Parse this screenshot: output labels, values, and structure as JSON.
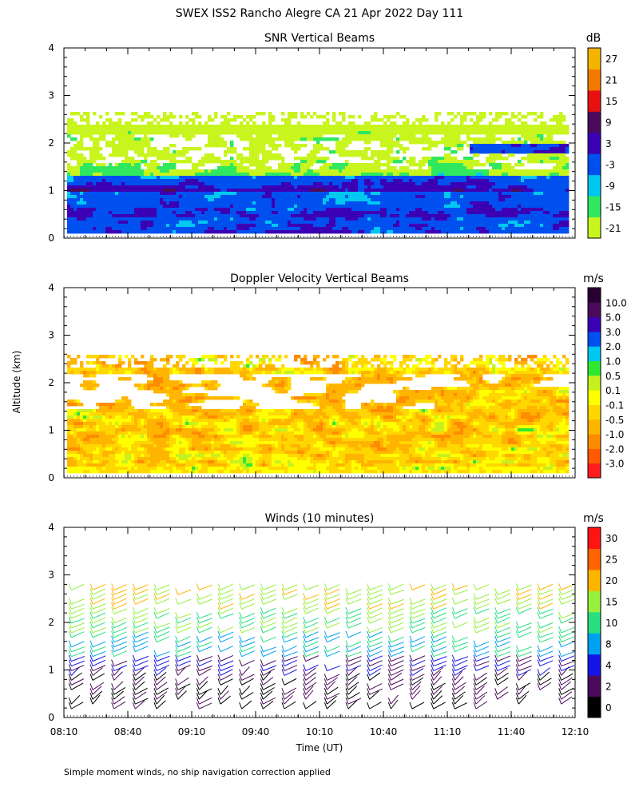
{
  "figure": {
    "title": "SWEX ISS2 Rancho Alegre CA  21 Apr 2022 Day 111",
    "y_label": "Altitude (km)",
    "x_label": "Time (UT)",
    "footnote": "Simple moment winds, no ship navigation correction applied"
  },
  "chart_data": [
    {
      "type": "heatmap",
      "title": "SNR Vertical Beams",
      "ylim": [
        0,
        4
      ],
      "y_ticks": [
        "0",
        "1",
        "2",
        "3",
        "4"
      ],
      "xlim": [
        "08:10",
        "12:10"
      ],
      "colorbar_unit": "dB",
      "colorbar_labels": [
        "-21",
        "-15",
        "-9",
        "-3",
        "3",
        "9",
        "15",
        "21",
        "27"
      ],
      "colorbar_colors": [
        "#c8f51e",
        "#30e860",
        "#00c8f0",
        "#0050f0",
        "#3c00b4",
        "#4b0a5a",
        "#e81010",
        "#f57800",
        "#f5b400"
      ],
      "data_altitude_range_km": [
        0.15,
        2.7
      ]
    },
    {
      "type": "heatmap",
      "title": "Doppler Velocity Vertical Beams",
      "ylim": [
        0,
        4
      ],
      "y_ticks": [
        "0",
        "1",
        "2",
        "3",
        "4"
      ],
      "xlim": [
        "08:10",
        "12:10"
      ],
      "colorbar_unit": "m/s",
      "colorbar_labels": [
        "-3.0",
        "-2.0",
        "-1.0",
        "-0.5",
        "-0.1",
        "0.1",
        "0.5",
        "1.0",
        "2.0",
        "3.0",
        "5.0",
        "10.0"
      ],
      "colorbar_colors": [
        "#ff1e1e",
        "#ff5a00",
        "#ff8c00",
        "#ffb400",
        "#ffd700",
        "#ffff00",
        "#c8f01e",
        "#30e830",
        "#00c8f0",
        "#0050f0",
        "#3c00b4",
        "#4b0a5a",
        "#2a0033"
      ],
      "data_altitude_range_km": [
        0.15,
        2.6
      ]
    },
    {
      "type": "scatter",
      "title": "Winds (10 minutes)",
      "ylim": [
        0,
        4
      ],
      "y_ticks": [
        "0",
        "1",
        "2",
        "3",
        "4"
      ],
      "xlim": [
        "08:10",
        "12:10"
      ],
      "x_ticks": [
        "08:10",
        "08:40",
        "09:10",
        "09:40",
        "10:10",
        "10:40",
        "11:10",
        "11:40",
        "12:10"
      ],
      "colorbar_unit": "m/s",
      "colorbar_labels": [
        "0",
        "2",
        "4",
        "8",
        "10",
        "15",
        "20",
        "25",
        "30"
      ],
      "colorbar_colors": [
        "#000000",
        "#4b0a5a",
        "#1414e6",
        "#00a0f0",
        "#28e080",
        "#96f03c",
        "#ffb400",
        "#ff6400",
        "#ff1414"
      ],
      "profile_interval_minutes": 10,
      "data_altitude_range_km": [
        0.2,
        2.8
      ]
    }
  ]
}
